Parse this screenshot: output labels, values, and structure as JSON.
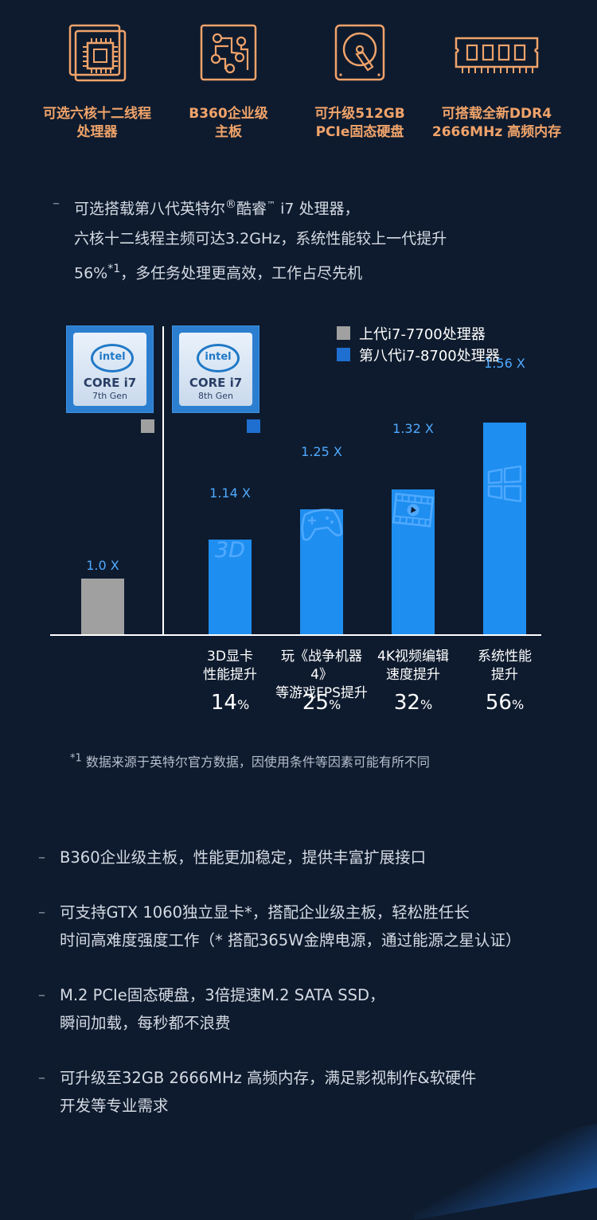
{
  "features": [
    {
      "icon": "cpu-chip-icon",
      "caption": "可选六核十二线程\n处理器"
    },
    {
      "icon": "motherboard-icon",
      "caption": "B360企业级\n主板"
    },
    {
      "icon": "hard-disk-icon",
      "caption": "可升级512GB\nPCIe固态硬盘"
    },
    {
      "icon": "ram-module-icon",
      "caption": "可搭载全新DDR4\n2666MHz 高频内存"
    }
  ],
  "intro": {
    "line1a": "可选搭载第八代英特尔",
    "line1reg": "®",
    "line1b": "酷睿",
    "line1tm": "™",
    "line1c": " i7 处理器，",
    "line2": "六核十二线程主频可达3.2GHz，系统性能较上一代提升",
    "line3a": "56%",
    "line3sup": "*1",
    "line3b": "，多任务处理更高效，工作占尽先机"
  },
  "badges": [
    {
      "brand": "intel",
      "core": "CORE i7",
      "gen": "7th Gen"
    },
    {
      "brand": "intel",
      "core": "CORE i7",
      "gen": "8th Gen"
    }
  ],
  "colors": {
    "prev": "#a0a0a0",
    "curr": "#1e8ef0",
    "accent": "#f0a36a",
    "value": "#4fa9ff"
  },
  "chart_data": {
    "type": "bar",
    "legend": [
      "上代i7-7700处理器",
      "第八代i7-8700处理器"
    ],
    "bars": [
      {
        "series": "上代i7-7700处理器",
        "label": "1.0 X",
        "value": 1.0
      },
      {
        "series": "第八代i7-8700处理器",
        "label": "1.14 X",
        "value": 1.14,
        "icon": "3d-icon",
        "category": "3D显卡\n性能提升",
        "percent": "14",
        "unit": "%"
      },
      {
        "series": "第八代i7-8700处理器",
        "label": "1.25 X",
        "value": 1.25,
        "icon": "gamepad-icon",
        "category": "玩《战争机器4》\n等游戏FPS提升",
        "percent": "25",
        "unit": "%"
      },
      {
        "series": "第八代i7-8700处理器",
        "label": "1.32 X",
        "value": 1.32,
        "icon": "video-icon",
        "category": "4K视频编辑\n速度提升",
        "percent": "32",
        "unit": "%"
      },
      {
        "series": "第八代i7-8700处理器",
        "label": "1.56 X",
        "value": 1.56,
        "icon": "windows-icon",
        "category": "系统性能\n提升",
        "percent": "56",
        "unit": "%"
      }
    ]
  },
  "footnote": {
    "mark": "*1",
    "text": " 数据来源于英特尔官方数据，因使用条件等因素可能有所不同"
  },
  "bullets": [
    {
      "lines": [
        "B360企业级主板，性能更加稳定，提供丰富扩展接口"
      ]
    },
    {
      "lines": [
        "可支持GTX 1060独立显卡*，搭配企业级主板，轻松胜任长",
        "时间高难度强度工作（* 搭配365W金牌电源，通过能源之星认证）"
      ]
    },
    {
      "lines": [
        "M.2 PCIe固态硬盘，3倍提速M.2 SATA SSD，",
        "瞬间加载，每秒都不浪费"
      ]
    },
    {
      "lines": [
        "可升级至32GB 2666MHz 高频内存，满足影视制作&软硬件",
        "开发等专业需求"
      ]
    }
  ]
}
